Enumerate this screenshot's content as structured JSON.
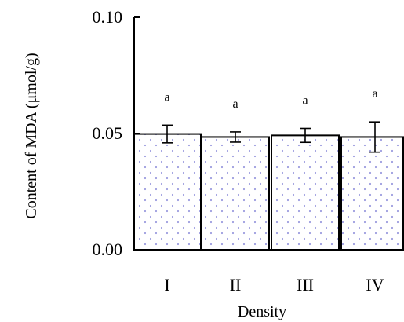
{
  "chart_data": {
    "type": "bar",
    "xlabel": "Density",
    "ylabel": "Content of MDA (μmol/g)",
    "ylim": [
      0.0,
      0.1
    ],
    "yticks": [
      "0.00",
      "0.05",
      "0.10"
    ],
    "ytick_values": [
      0.0,
      0.05,
      0.1
    ],
    "categories": [
      "I",
      "II",
      "III",
      "IV"
    ],
    "values": [
      0.0498,
      0.0485,
      0.0492,
      0.0485
    ],
    "errors": [
      0.0038,
      0.0022,
      0.003,
      0.0065
    ],
    "significance": [
      "a",
      "a",
      "a",
      "a"
    ],
    "grid": false,
    "bar_fill": "dotted, light blue-purple dots on white",
    "colors": {
      "dot": "#9d9ddf",
      "axis": "#000000",
      "bar_edge": "#000000"
    }
  }
}
